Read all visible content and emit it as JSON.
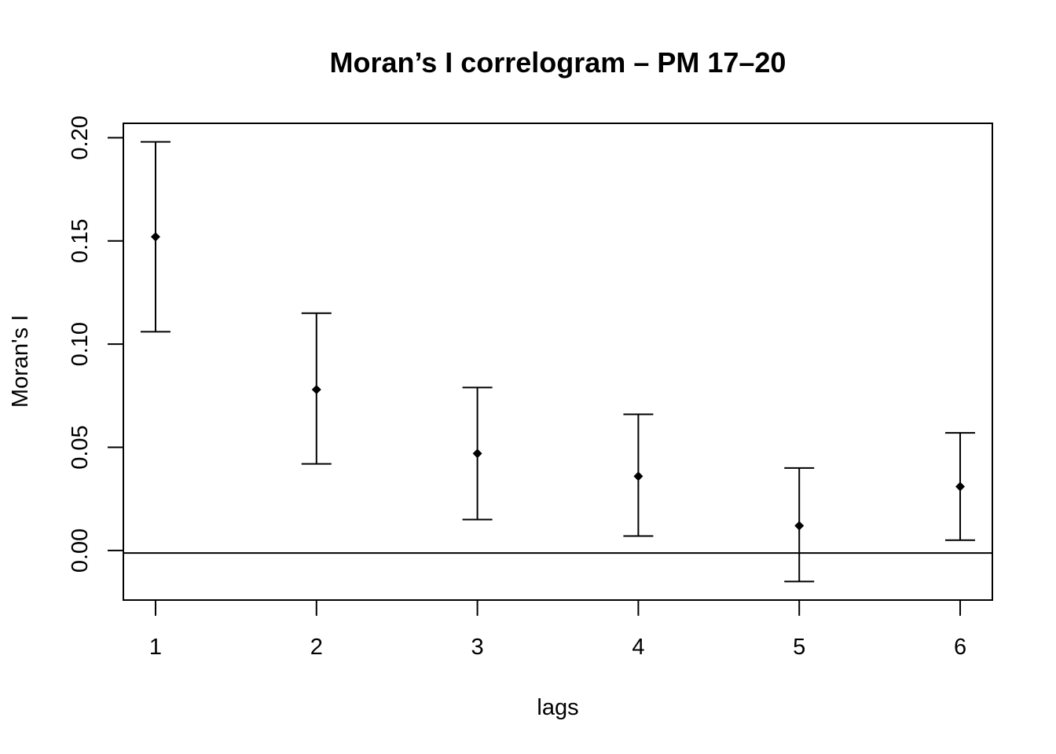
{
  "chart_data": {
    "type": "scatter",
    "title": "Moran’s I correlogram – PM 17–20",
    "xlabel": "lags",
    "ylabel": "Moran's I",
    "x_ticks": [
      "1",
      "2",
      "3",
      "4",
      "5",
      "6"
    ],
    "y_ticks": [
      "0.00",
      "0.05",
      "0.10",
      "0.15",
      "0.20"
    ],
    "xlim": [
      0.8,
      6.2
    ],
    "ylim": [
      -0.024,
      0.207
    ],
    "reference_line_y": -0.0012,
    "grid": false,
    "legend": "none",
    "points": [
      {
        "lag": 1,
        "value": 0.152,
        "lower": 0.106,
        "upper": 0.198
      },
      {
        "lag": 2,
        "value": 0.078,
        "lower": 0.042,
        "upper": 0.115
      },
      {
        "lag": 3,
        "value": 0.047,
        "lower": 0.015,
        "upper": 0.079
      },
      {
        "lag": 4,
        "value": 0.036,
        "lower": 0.007,
        "upper": 0.066
      },
      {
        "lag": 5,
        "value": 0.012,
        "lower": -0.015,
        "upper": 0.04
      },
      {
        "lag": 6,
        "value": 0.031,
        "lower": 0.005,
        "upper": 0.057
      }
    ],
    "colors": {
      "ink": "#000000",
      "background": "#ffffff"
    }
  }
}
